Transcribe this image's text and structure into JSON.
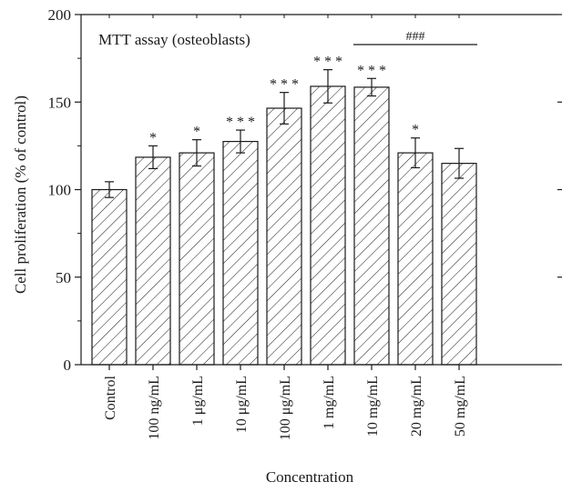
{
  "chart_data": {
    "type": "bar",
    "panel_label": "MTT assay (osteoblasts)",
    "xlabel": "Concentration",
    "ylabel": "Cell proliferation (% of control)",
    "ylim": [
      0,
      200
    ],
    "yticks": [
      0,
      50,
      100,
      150,
      200
    ],
    "categories": [
      "Control",
      "100 ng/mL",
      "1 μg/mL",
      "10 μg/mL",
      "100 μg/mL",
      "1 mg/mL",
      "10 mg/mL",
      "20 mg/mL",
      "50 mg/mL"
    ],
    "values": [
      100,
      118.5,
      121,
      127.5,
      146.5,
      159,
      158.5,
      121,
      115
    ],
    "errors": [
      4.5,
      6.5,
      7.5,
      6.5,
      9,
      9.5,
      5,
      8.5,
      8.5
    ],
    "significance": [
      "",
      "*",
      "*",
      "* * *",
      "* * *",
      "* * *",
      "* * *",
      "*",
      ""
    ],
    "bracket": {
      "label": "###",
      "from_category": "10 mg/mL",
      "to_category": "50 mg/mL"
    },
    "bar_fill": "hatched",
    "grid": false
  }
}
